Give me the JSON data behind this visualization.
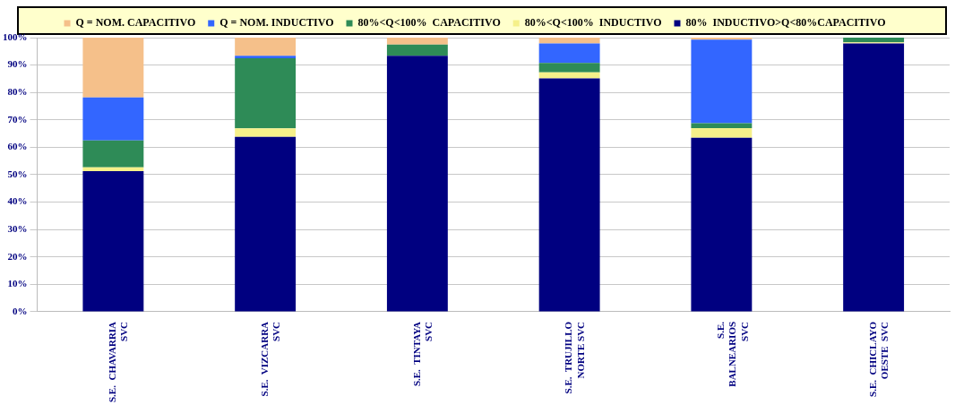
{
  "chart_data": {
    "type": "bar",
    "stacked": true,
    "legend": "top",
    "grid": "y",
    "categories": [
      "S.E.  CHAVARRIA\nSVC",
      "S.E.  VIZCARRA\nSVC",
      "S.E.  TINTAYA\nSVC",
      "S.E.  TRUJILLO\nNORTE SVC",
      "S.E.\nBALNEARIOS\nSVC",
      "S.E.  CHICLAYO\nOESTE  SVC"
    ],
    "series": [
      {
        "name": "80%  INDUCTIVO>Q<80%CAPACITIVO",
        "color": "#000080",
        "values": [
          51.3,
          63.8,
          93.4,
          85.1,
          63.5,
          97.9
        ]
      },
      {
        "name": "80%<Q<100%  INDUCTIVO",
        "color": "#f5f08a",
        "values": [
          1.4,
          3.1,
          0,
          2.2,
          3.5,
          0.4
        ]
      },
      {
        "name": "80%<Q<100%  CAPACITIVO",
        "color": "#2e8b57",
        "values": [
          9.8,
          25.6,
          4.1,
          3.5,
          1.8,
          1.7
        ]
      },
      {
        "name": "Q = NOM. INDUCTIVO",
        "color": "#3366ff",
        "values": [
          15.7,
          0.9,
          0,
          7.1,
          30.5,
          0
        ]
      },
      {
        "name": "Q = NOM. CAPACITIVO",
        "color": "#f5c08a",
        "values": [
          21.8,
          6.6,
          2.5,
          2.1,
          0.7,
          0
        ]
      }
    ],
    "ylim": [
      0,
      100
    ],
    "yticks": [
      {
        "value": 0,
        "label": "0%"
      },
      {
        "value": 10,
        "label": "10%"
      },
      {
        "value": 20,
        "label": "20%"
      },
      {
        "value": 30,
        "label": "30%"
      },
      {
        "value": 40,
        "label": "40%"
      },
      {
        "value": 50,
        "label": "50%"
      },
      {
        "value": 60,
        "label": "60%"
      },
      {
        "value": 70,
        "label": "70%"
      },
      {
        "value": 80,
        "label": "80%"
      },
      {
        "value": 90,
        "label": "90%"
      },
      {
        "value": 100,
        "label": "100%"
      }
    ]
  }
}
